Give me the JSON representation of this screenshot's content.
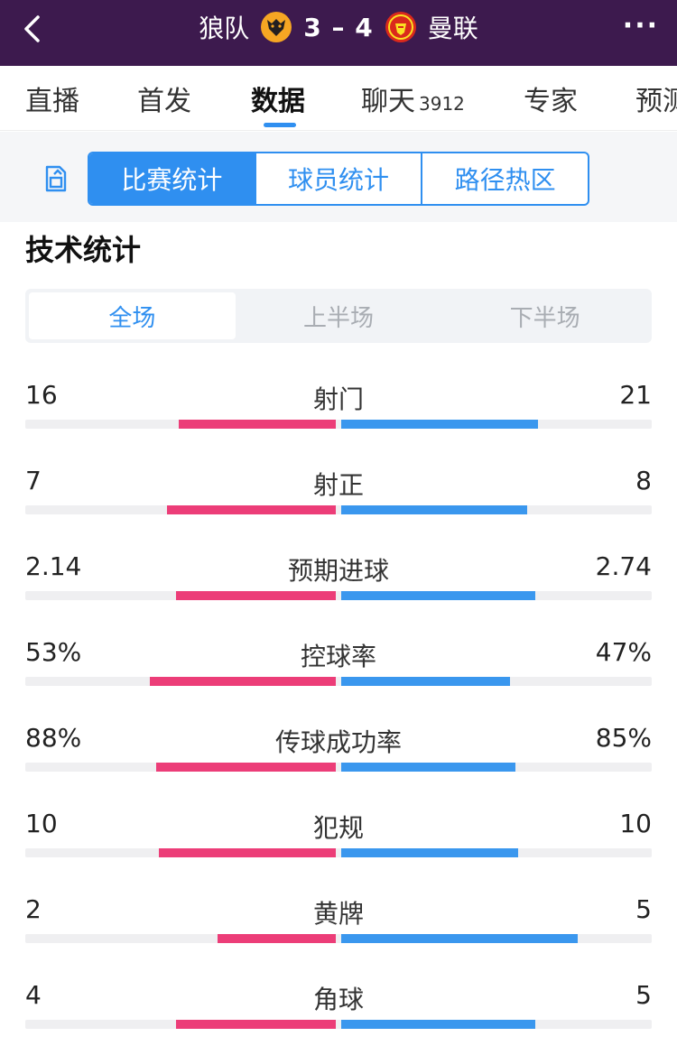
{
  "header": {
    "home_team": "狼队",
    "score": "3 – 4",
    "away_team": "曼联",
    "more_label": "···",
    "home_colors": {
      "primary": "#f6a623",
      "secondary": "#231f20"
    },
    "away_colors": {
      "primary": "#da291c",
      "secondary": "#fbe122"
    }
  },
  "tabs": [
    {
      "label": "直播"
    },
    {
      "label": "首发"
    },
    {
      "label": "数据",
      "active": true
    },
    {
      "label": "聊天",
      "count": "3912"
    },
    {
      "label": "专家"
    },
    {
      "label": "预测"
    }
  ],
  "segments": [
    {
      "label": "比赛统计",
      "active": true
    },
    {
      "label": "球员统计"
    },
    {
      "label": "路径热区"
    }
  ],
  "section_title": "技术统计",
  "periods": [
    {
      "label": "全场",
      "active": true
    },
    {
      "label": "上半场"
    },
    {
      "label": "下半场"
    }
  ],
  "colors": {
    "home_bar": "#ec3d78",
    "away_bar": "#3a97ee",
    "accent": "#2f8ff0",
    "header_bg": "#3d1a4e"
  },
  "stats": [
    {
      "name": "射门",
      "home": "16",
      "away": "21",
      "home_ratio": 0.43,
      "away_ratio": 0.57
    },
    {
      "name": "射正",
      "home": "7",
      "away": "8",
      "home_ratio": 0.47,
      "away_ratio": 0.53
    },
    {
      "name": "预期进球",
      "home": "2.14",
      "away": "2.74",
      "home_ratio": 0.44,
      "away_ratio": 0.56
    },
    {
      "name": "控球率",
      "home": "53%",
      "away": "47%",
      "home_ratio": 0.53,
      "away_ratio": 0.47
    },
    {
      "name": "传球成功率",
      "home": "88%",
      "away": "85%",
      "home_ratio": 0.51,
      "away_ratio": 0.49
    },
    {
      "name": "犯规",
      "home": "10",
      "away": "10",
      "home_ratio": 0.5,
      "away_ratio": 0.5
    },
    {
      "name": "黄牌",
      "home": "2",
      "away": "5",
      "home_ratio": 0.29,
      "away_ratio": 0.71
    },
    {
      "name": "角球",
      "home": "4",
      "away": "5",
      "home_ratio": 0.44,
      "away_ratio": 0.56
    }
  ]
}
